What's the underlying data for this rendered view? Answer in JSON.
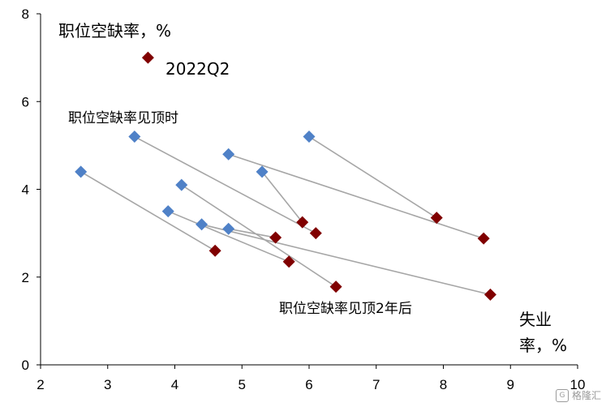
{
  "chart_data": {
    "type": "scatter",
    "title": "职位空缺率，%",
    "xlabel_line1": "失业",
    "xlabel_line2": "率，%",
    "xlim": [
      2,
      10
    ],
    "ylim": [
      0,
      8
    ],
    "xticks": [
      2,
      3,
      4,
      5,
      6,
      7,
      8,
      9,
      10
    ],
    "yticks": [
      0,
      2,
      4,
      6,
      8
    ],
    "grid": false,
    "colors": {
      "peak": "#4f81c7",
      "after": "#800000",
      "line": "#a6a6a6",
      "current": "#800000"
    },
    "series": [
      {
        "name": "职位空缺率见顶时",
        "points": [
          [
            2.6,
            4.4
          ],
          [
            3.4,
            5.2
          ],
          [
            3.9,
            3.5
          ],
          [
            4.1,
            4.1
          ],
          [
            4.4,
            3.2
          ],
          [
            4.8,
            4.8
          ],
          [
            4.8,
            3.1
          ],
          [
            5.3,
            4.4
          ],
          [
            6.0,
            5.2
          ]
        ]
      },
      {
        "name": "职位空缺率见顶2年后",
        "points": [
          [
            4.6,
            2.6
          ],
          [
            6.1,
            3.0
          ],
          [
            5.7,
            2.35
          ],
          [
            6.4,
            1.78
          ],
          [
            8.7,
            1.6
          ],
          [
            8.6,
            2.88
          ],
          [
            5.5,
            2.9
          ],
          [
            5.9,
            3.25
          ],
          [
            7.9,
            3.35
          ]
        ]
      }
    ],
    "current_point": {
      "name": "2022Q2",
      "x": 3.6,
      "y": 7.0
    },
    "annotations": {
      "peak_label": "职位空缺率见顶时",
      "after_label": "职位空缺率见顶2年后",
      "current_label": "2022Q2"
    }
  },
  "watermark": {
    "icon": "G",
    "text": "格隆汇"
  }
}
